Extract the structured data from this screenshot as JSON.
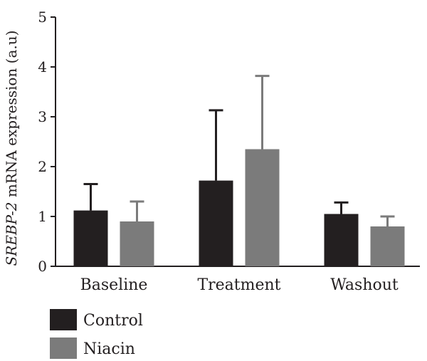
{
  "chart_data": {
    "type": "bar",
    "title": "",
    "xlabel": "",
    "ylabel": {
      "gene": "SREBP-2",
      "rest": " mRNA expression (a.u)"
    },
    "ylim": [
      0,
      5
    ],
    "yticks": [
      "0",
      "1",
      "2",
      "3",
      "4",
      "5"
    ],
    "grid": false,
    "legend_position": "bottom-left",
    "categories": [
      "Baseline",
      "Treatment",
      "Washout"
    ],
    "series": [
      {
        "name": "Control",
        "color": "#231f20",
        "values": [
          1.12,
          1.72,
          1.05
        ],
        "error_upper": [
          1.65,
          3.13,
          1.28
        ]
      },
      {
        "name": "Niacin",
        "color": "#7b7b7b",
        "values": [
          0.9,
          2.35,
          0.8
        ],
        "error_upper": [
          1.3,
          3.82,
          1.0
        ]
      }
    ]
  }
}
